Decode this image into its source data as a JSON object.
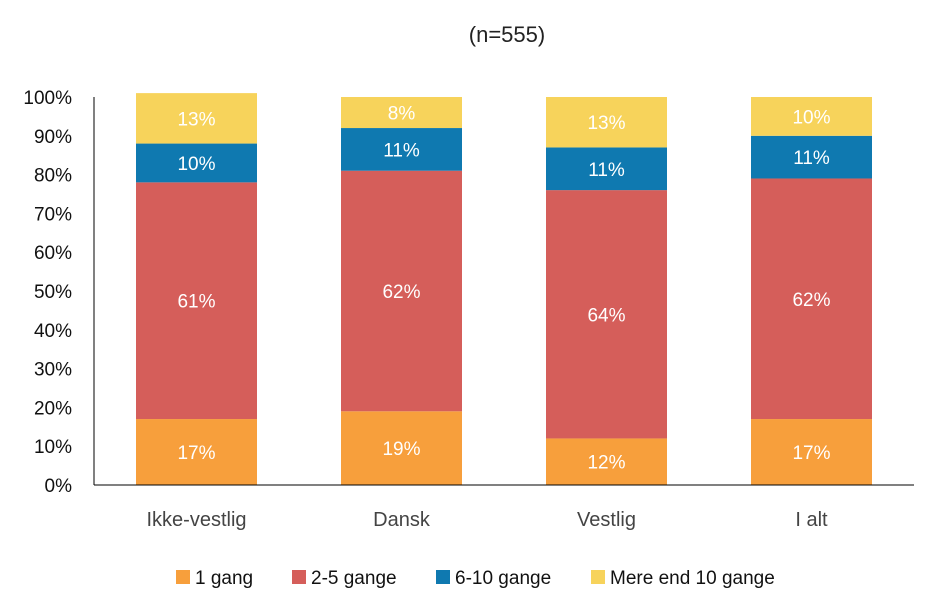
{
  "chart_data": {
    "type": "bar",
    "stacked": true,
    "subtitle": "(n=555)",
    "categories": [
      "Ikke-vestlig",
      "Dansk",
      "Vestlig",
      "I alt"
    ],
    "y_ticks": [
      "0%",
      "10%",
      "20%",
      "30%",
      "40%",
      "50%",
      "60%",
      "70%",
      "80%",
      "90%",
      "100%"
    ],
    "ylim": [
      0,
      100
    ],
    "grid": false,
    "legend_position": "bottom",
    "series": [
      {
        "name": "1 gang",
        "color": "#F79F3C",
        "values": [
          17,
          19,
          12,
          17
        ],
        "labels": [
          "17%",
          "19%",
          "12%",
          "17%"
        ]
      },
      {
        "name": "2-5 gange",
        "color": "#D55E5A",
        "values": [
          61,
          62,
          64,
          62
        ],
        "labels": [
          "61%",
          "62%",
          "64%",
          "62%"
        ]
      },
      {
        "name": "6-10 gange",
        "color": "#0F79B0",
        "values": [
          10,
          11,
          11,
          11
        ],
        "labels": [
          "10%",
          "11%",
          "11%",
          "11%"
        ]
      },
      {
        "name": "Mere end 10 gange",
        "color": "#F7D35B",
        "values": [
          13,
          8,
          13,
          10
        ],
        "labels": [
          "13%",
          "8%",
          "13%",
          "10%"
        ]
      }
    ]
  }
}
